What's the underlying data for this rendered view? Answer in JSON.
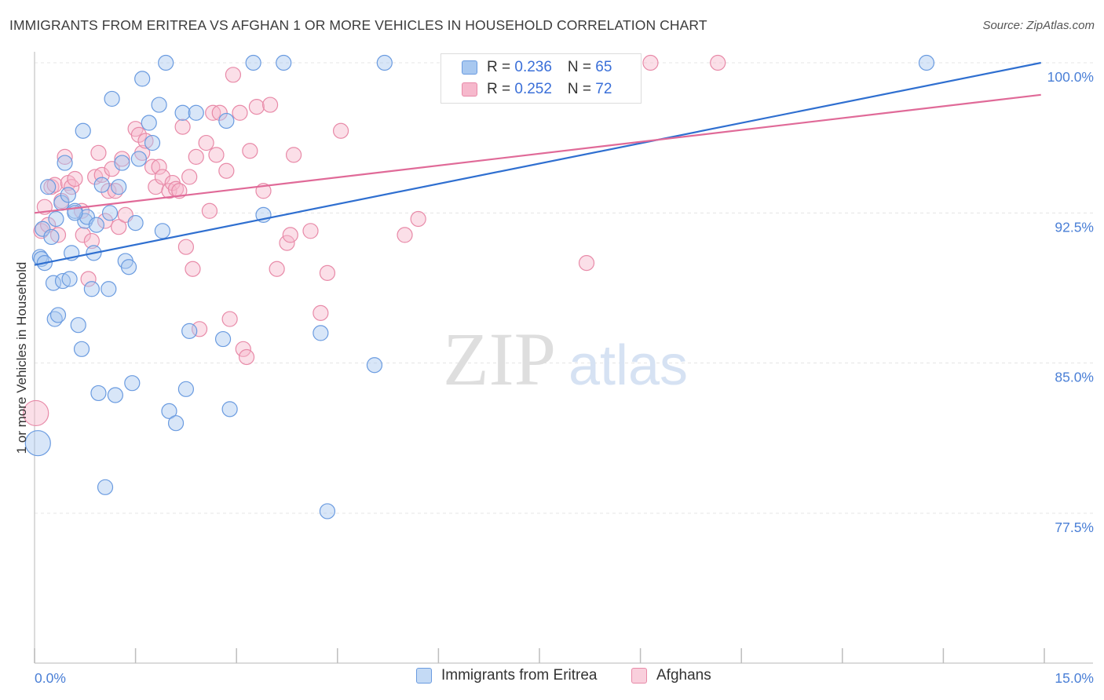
{
  "header": {
    "title": "IMMIGRANTS FROM ERITREA VS AFGHAN 1 OR MORE VEHICLES IN HOUSEHOLD CORRELATION CHART",
    "source": "Source: ZipAtlas.com"
  },
  "watermark": {
    "zip": "ZIP",
    "atlas": "atlas"
  },
  "legend_top": {
    "rows": [
      {
        "r_label": "R = ",
        "r_value": "0.236",
        "n_label": "N = ",
        "n_value": "65"
      },
      {
        "r_label": "R = ",
        "r_value": "0.252",
        "n_label": "N = ",
        "n_value": "72"
      }
    ]
  },
  "colors": {
    "blue_fill": "#a8c8f0",
    "blue_stroke": "#6a9be0",
    "blue_line": "#2f6fd0",
    "pink_fill": "#f6b8cc",
    "pink_stroke": "#e88aa8",
    "pink_line": "#e06a98",
    "axis_text": "#4a7fd6",
    "grid": "#e4e4e4"
  },
  "chart_data": {
    "type": "scatter",
    "title": "IMMIGRANTS FROM ERITREA VS AFGHAN 1 OR MORE VEHICLES IN HOUSEHOLD CORRELATION CHART",
    "xlabel": "",
    "ylabel": "1 or more Vehicles in Household",
    "xlim": [
      0,
      15
    ],
    "ylim": [
      71.5,
      101.5
    ],
    "x_tick_labels": [
      "0.0%",
      "15.0%"
    ],
    "y_ticks": [
      77.5,
      85.0,
      92.5,
      100.0
    ],
    "y_tick_labels": [
      "77.5%",
      "85.0%",
      "92.5%",
      "100.0%"
    ],
    "grid": true,
    "legend_position": "bottom",
    "series": [
      {
        "name": "Immigrants from Eritrea",
        "color": "#a8c8f0",
        "trend": {
          "x": [
            0,
            14.95
          ],
          "y": [
            89.9,
            100.0
          ]
        },
        "points": [
          [
            0.05,
            81.0
          ],
          [
            0.08,
            90.3
          ],
          [
            0.1,
            90.2
          ],
          [
            0.12,
            91.7
          ],
          [
            0.15,
            90.0
          ],
          [
            0.2,
            93.8
          ],
          [
            0.25,
            91.3
          ],
          [
            0.28,
            89.0
          ],
          [
            0.3,
            87.2
          ],
          [
            0.32,
            92.2
          ],
          [
            0.35,
            87.4
          ],
          [
            0.4,
            93.0
          ],
          [
            0.42,
            89.1
          ],
          [
            0.45,
            95.0
          ],
          [
            0.5,
            93.4
          ],
          [
            0.52,
            89.2
          ],
          [
            0.55,
            90.5
          ],
          [
            0.6,
            92.6
          ],
          [
            0.65,
            86.9
          ],
          [
            0.7,
            85.7
          ],
          [
            0.72,
            96.6
          ],
          [
            0.75,
            92.1
          ],
          [
            0.78,
            92.3
          ],
          [
            0.85,
            88.7
          ],
          [
            0.88,
            90.5
          ],
          [
            0.92,
            91.9
          ],
          [
            0.95,
            83.5
          ],
          [
            1.0,
            93.9
          ],
          [
            1.05,
            78.8
          ],
          [
            1.1,
            88.7
          ],
          [
            1.12,
            92.5
          ],
          [
            1.15,
            98.2
          ],
          [
            1.2,
            83.4
          ],
          [
            1.25,
            93.8
          ],
          [
            1.3,
            95.0
          ],
          [
            1.35,
            90.1
          ],
          [
            1.4,
            89.8
          ],
          [
            1.45,
            84.0
          ],
          [
            1.5,
            92.0
          ],
          [
            1.55,
            95.2
          ],
          [
            1.6,
            99.2
          ],
          [
            1.7,
            97.0
          ],
          [
            1.75,
            96.0
          ],
          [
            1.85,
            97.9
          ],
          [
            1.9,
            91.6
          ],
          [
            1.95,
            100.0
          ],
          [
            2.0,
            82.6
          ],
          [
            2.1,
            82.0
          ],
          [
            2.2,
            97.5
          ],
          [
            2.25,
            83.7
          ],
          [
            2.3,
            86.6
          ],
          [
            2.4,
            97.5
          ],
          [
            2.8,
            86.2
          ],
          [
            2.85,
            97.1
          ],
          [
            2.9,
            82.7
          ],
          [
            3.25,
            100.0
          ],
          [
            3.4,
            92.4
          ],
          [
            3.7,
            100.0
          ],
          [
            4.25,
            86.5
          ],
          [
            4.35,
            77.6
          ],
          [
            5.05,
            84.9
          ],
          [
            5.2,
            100.0
          ],
          [
            6.75,
            100.0
          ],
          [
            13.25,
            100.0
          ],
          [
            0.6,
            92.5
          ]
        ]
      },
      {
        "name": "Afghans",
        "color": "#f6b8cc",
        "trend": {
          "x": [
            0,
            14.95
          ],
          "y": [
            92.5,
            98.4
          ]
        },
        "points": [
          [
            0.02,
            82.5
          ],
          [
            0.1,
            91.6
          ],
          [
            0.15,
            92.8
          ],
          [
            0.2,
            91.9
          ],
          [
            0.25,
            93.8
          ],
          [
            0.3,
            93.9
          ],
          [
            0.35,
            91.4
          ],
          [
            0.4,
            93.1
          ],
          [
            0.45,
            95.3
          ],
          [
            0.5,
            94.0
          ],
          [
            0.55,
            93.8
          ],
          [
            0.6,
            94.2
          ],
          [
            0.7,
            92.6
          ],
          [
            0.72,
            91.4
          ],
          [
            0.8,
            89.2
          ],
          [
            0.85,
            91.1
          ],
          [
            0.9,
            94.3
          ],
          [
            0.95,
            95.5
          ],
          [
            1.0,
            94.4
          ],
          [
            1.05,
            92.1
          ],
          [
            1.1,
            93.6
          ],
          [
            1.15,
            94.7
          ],
          [
            1.2,
            93.6
          ],
          [
            1.25,
            91.8
          ],
          [
            1.3,
            95.2
          ],
          [
            1.35,
            92.4
          ],
          [
            1.5,
            96.7
          ],
          [
            1.55,
            96.4
          ],
          [
            1.6,
            95.5
          ],
          [
            1.65,
            96.1
          ],
          [
            1.75,
            94.8
          ],
          [
            1.8,
            93.8
          ],
          [
            1.85,
            94.8
          ],
          [
            1.9,
            94.3
          ],
          [
            2.0,
            93.6
          ],
          [
            2.05,
            94.0
          ],
          [
            2.1,
            93.7
          ],
          [
            2.15,
            93.6
          ],
          [
            2.2,
            96.8
          ],
          [
            2.25,
            90.8
          ],
          [
            2.3,
            94.3
          ],
          [
            2.35,
            89.7
          ],
          [
            2.4,
            95.3
          ],
          [
            2.45,
            86.7
          ],
          [
            2.55,
            96.0
          ],
          [
            2.6,
            92.6
          ],
          [
            2.65,
            97.5
          ],
          [
            2.7,
            95.4
          ],
          [
            2.75,
            97.5
          ],
          [
            2.85,
            94.6
          ],
          [
            2.9,
            87.2
          ],
          [
            2.95,
            99.4
          ],
          [
            3.05,
            97.5
          ],
          [
            3.1,
            85.7
          ],
          [
            3.15,
            85.3
          ],
          [
            3.2,
            95.6
          ],
          [
            3.3,
            97.8
          ],
          [
            3.4,
            93.6
          ],
          [
            3.5,
            97.9
          ],
          [
            3.6,
            89.7
          ],
          [
            3.75,
            91.0
          ],
          [
            3.8,
            91.4
          ],
          [
            3.85,
            95.4
          ],
          [
            4.1,
            91.6
          ],
          [
            4.25,
            87.5
          ],
          [
            4.35,
            89.5
          ],
          [
            4.55,
            96.6
          ],
          [
            5.5,
            91.4
          ],
          [
            5.7,
            92.2
          ],
          [
            8.2,
            90.0
          ],
          [
            9.15,
            100.0
          ],
          [
            10.15,
            100.0
          ],
          [
            7.2,
            100.0
          ]
        ]
      }
    ]
  },
  "legend_bottom": {
    "items": [
      {
        "label": "Immigrants from Eritrea"
      },
      {
        "label": "Afghans"
      }
    ]
  }
}
